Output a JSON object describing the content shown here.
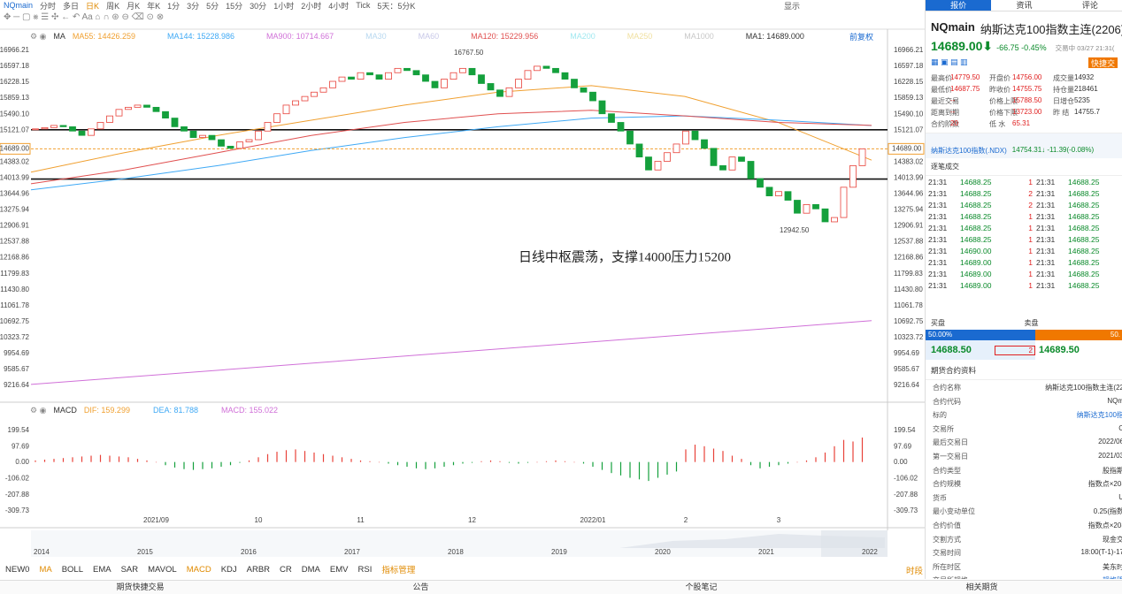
{
  "toolbar": {
    "symbol": "NQmain",
    "periods": [
      "分时",
      "多日",
      "日K",
      "周K",
      "月K",
      "年K",
      "1分",
      "3分",
      "5分",
      "15分",
      "30分",
      "1小时",
      "2小时",
      "4小时",
      "Tick",
      "5天：5分K"
    ],
    "right": "显示"
  },
  "chart_data": [
    {
      "type": "candlestick",
      "ma_label": "MA",
      "adjust": "前复权",
      "legend": [
        {
          "label": "MA55: 14426.259",
          "color": "#f0a030"
        },
        {
          "label": "MA144: 15228.986",
          "color": "#3fa9f5"
        },
        {
          "label": "MA900: 10714.667",
          "color": "#d070d8"
        },
        {
          "label": "MA30",
          "color": "#b8d8f0"
        },
        {
          "label": "MA60",
          "color": "#c8c8e8"
        },
        {
          "label": "MA120: 15229.956",
          "color": "#e05050"
        },
        {
          "label": "MA200",
          "color": "#a0e8f0"
        },
        {
          "label": "MA250",
          "color": "#f0e0a0"
        },
        {
          "label": "MA1000",
          "color": "#c8c8c8"
        },
        {
          "label": "MA1: 14689.000",
          "color": "#333333"
        }
      ],
      "categories": [
        null,
        null,
        null,
        null,
        null,
        null,
        null,
        null,
        null,
        null,
        null,
        null,
        null,
        "2021/09",
        null,
        null,
        null,
        null,
        null,
        null,
        null,
        null,
        null,
        null,
        "10",
        null,
        null,
        null,
        null,
        null,
        null,
        null,
        null,
        null,
        null,
        "11",
        null,
        null,
        null,
        null,
        null,
        null,
        null,
        null,
        null,
        null,
        null,
        "12",
        null,
        null,
        null,
        null,
        null,
        null,
        null,
        null,
        null,
        null,
        null,
        null,
        "2022/01",
        null,
        null,
        null,
        null,
        null,
        null,
        null,
        null,
        null,
        "2",
        null,
        null,
        null,
        null,
        null,
        null,
        null,
        null,
        null,
        "3",
        null,
        null,
        null,
        null,
        null,
        null,
        null,
        null,
        null
      ],
      "values": [
        15150,
        15180,
        15230,
        15200,
        15100,
        15000,
        15150,
        15300,
        15450,
        15600,
        15650,
        15700,
        15650,
        15550,
        15400,
        15200,
        15100,
        14950,
        15000,
        14900,
        14750,
        14700,
        14850,
        14900,
        15100,
        15300,
        15500,
        15700,
        15800,
        15900,
        16000,
        16100,
        16250,
        16350,
        16300,
        16450,
        16400,
        16300,
        16450,
        16550,
        16500,
        16400,
        16250,
        16100,
        16300,
        16450,
        16550,
        16400,
        16200,
        16050,
        15900,
        16100,
        16300,
        16500,
        16600,
        16550,
        16450,
        16300,
        16100,
        16000,
        15800,
        15500,
        15300,
        15100,
        14800,
        14500,
        14200,
        14400,
        14600,
        14800,
        15100,
        14900,
        14700,
        14300,
        14200,
        14500,
        14400,
        14000,
        13800,
        13600,
        13700,
        13500,
        13200,
        13400,
        13300,
        13000,
        13100,
        13800,
        14300,
        14689
      ],
      "ylim": [
        8828,
        17416
      ],
      "yticks": [
        16966.21,
        16597.18,
        16228.15,
        15859.13,
        {
          "value": 15490.1,
          "label": "15490.10"
        },
        15121.07,
        14383.02,
        14013.99,
        13644.96,
        13275.94,
        12906.91,
        12537.88,
        12168.86,
        11799.83,
        {
          "value": 11430.8,
          "label": "11430.80"
        },
        11061.78,
        10692.75,
        10323.72,
        9954.69,
        9585.67,
        9216.64
      ],
      "last_price": {
        "value": 14689,
        "label": "14689.00"
      },
      "levels": [
        15130,
        13990
      ],
      "lines": [
        {
          "color": "#f0a030",
          "values": [
            14150,
            14600,
            15000,
            15350,
            15700,
            16000,
            16150,
            15900,
            15300,
            14426
          ]
        },
        {
          "color": "#3fa9f5",
          "values": [
            13740,
            14000,
            14300,
            14650,
            14950,
            15200,
            15400,
            15450,
            15350,
            15229
          ]
        },
        {
          "color": "#e05050",
          "values": [
            13880,
            14200,
            14600,
            15000,
            15300,
            15500,
            15580,
            15450,
            15300,
            15230
          ]
        },
        {
          "color": "#d070d8",
          "values": [
            9240,
            10714
          ]
        }
      ],
      "high_label": "16767.50",
      "low_label": "12942.50",
      "note": "日线中枢震荡，支撑14000压力15200"
    },
    {
      "type": "bar",
      "name": "MACD",
      "legend": [
        {
          "label": "DIF: 159.299",
          "color": "#f0a030"
        },
        {
          "label": "DEA: 81.788",
          "color": "#3fa9f5"
        },
        {
          "label": "MACD: 155.022",
          "color": "#d070d8"
        }
      ],
      "values": [
        10,
        15,
        20,
        25,
        30,
        35,
        40,
        45,
        40,
        35,
        30,
        20,
        10,
        0,
        -20,
        -35,
        -45,
        -50,
        -45,
        -40,
        -30,
        -20,
        -5,
        10,
        30,
        50,
        65,
        75,
        80,
        70,
        60,
        50,
        40,
        30,
        20,
        10,
        5,
        0,
        -10,
        -20,
        -30,
        -40,
        -45,
        -40,
        -30,
        -20,
        -10,
        -5,
        5,
        10,
        5,
        -5,
        -10,
        -5,
        0,
        5,
        10,
        5,
        0,
        -10,
        -30,
        -50,
        -70,
        -85,
        -100,
        -110,
        -120,
        -100,
        -80,
        -60,
        80,
        110,
        100,
        85,
        70,
        40,
        20,
        -20,
        -40,
        -30,
        -20,
        -10,
        0,
        10,
        30,
        60,
        100,
        140,
        130,
        155
      ],
      "ylim": [
        -377,
        295
      ],
      "yticks": [
        199.54,
        97.69,
        {
          "value": 0,
          "label": "0.00"
        },
        -106.02,
        -207.88,
        -309.73
      ]
    }
  ],
  "overview_years": [
    "2014",
    "2015",
    "2016",
    "2017",
    "2018",
    "2019",
    "2020",
    "2021",
    "2022"
  ],
  "indicator_tabs": [
    "NEW0",
    "MA",
    "BOLL",
    "EMA",
    "SAR",
    "MAVOL",
    "MACD",
    "KDJ",
    "ARBR",
    "CR",
    "DMA",
    "EMV",
    "RSI",
    "指标管理"
  ],
  "period_tab": "时段",
  "footer": [
    "期货快捷交易",
    "公告",
    "个股笔记",
    "相关期货"
  ],
  "panel": {
    "tabs": [
      "报价",
      "资讯",
      "评论"
    ],
    "symbol": "NQmain",
    "name": "纳斯达克100指数主连(2206)",
    "price": "14689.00⬇",
    "change": "-66.75 -0.45%",
    "status": "交易中 03/27 21:31(",
    "quick": "快捷交",
    "quote": [
      [
        "最高价",
        "14779.50",
        "开盘价",
        "14756.00",
        "成交量",
        "14932"
      ],
      [
        "最低价",
        "14687.75",
        "昨收价",
        "14755.75",
        "持仓量",
        "218461"
      ],
      [
        "最近交易",
        "--",
        "价格上限",
        "15788.50",
        "日增仓",
        "5235"
      ],
      [
        "距离到期",
        "--",
        "价格下限",
        "13723.00",
        "昨 结",
        "14755.7"
      ],
      [
        "合约阶数",
        "20",
        "低 水",
        "65.31",
        "",
        ""
      ]
    ],
    "index": {
      "name": "纳斯达克100指数(.NDX)",
      "value": "14754.31↓ -11.39(-0.08%)"
    },
    "trades_title": "逐笔成交",
    "trades": [
      [
        "21:31",
        "14688.25",
        "1",
        "21:31",
        "14688.25"
      ],
      [
        "21:31",
        "14688.25",
        "2",
        "21:31",
        "14688.25"
      ],
      [
        "21:31",
        "14688.25",
        "2",
        "21:31",
        "14688.25"
      ],
      [
        "21:31",
        "14688.25",
        "1",
        "21:31",
        "14688.25"
      ],
      [
        "21:31",
        "14688.25",
        "1",
        "21:31",
        "14688.25"
      ],
      [
        "21:31",
        "14688.25",
        "1",
        "21:31",
        "14688.25"
      ],
      [
        "21:31",
        "14690.00",
        "1",
        "21:31",
        "14688.25"
      ],
      [
        "21:31",
        "14689.00",
        "1",
        "21:31",
        "14688.25"
      ],
      [
        "21:31",
        "14689.00",
        "1",
        "21:31",
        "14688.25"
      ],
      [
        "21:31",
        "14689.00",
        "1",
        "21:31",
        "14688.25"
      ]
    ],
    "bid_label": "买盘",
    "ask_label": "卖盘",
    "bid_pct": "50.00%",
    "ask_pct": "50.",
    "bid": "14688.50",
    "bid_vol": "2",
    "ask": "14689.50",
    "info_title": "期货合约资料",
    "info": [
      [
        "合约名称",
        "纳斯达克100指数主连(22"
      ],
      [
        "合约代码",
        "NQm"
      ],
      [
        "标的",
        "纳斯达克100指"
      ],
      [
        "交易所",
        "C"
      ],
      [
        "最后交易日",
        "2022/06"
      ],
      [
        "第一交易日",
        "2021/03"
      ],
      [
        "合约类型",
        "股指期"
      ],
      [
        "合约规模",
        "指数点×20("
      ],
      [
        "货币",
        "U"
      ],
      [
        "最小变动单位",
        "0.25(指数"
      ],
      [
        "合约价值",
        "指数点×20("
      ],
      [
        "交割方式",
        "现金交"
      ],
      [
        "交易时间",
        "18:00(T-1)-17"
      ],
      [
        "所在时区",
        "美东时"
      ],
      [
        "交易所规格",
        "规格明"
      ]
    ]
  }
}
